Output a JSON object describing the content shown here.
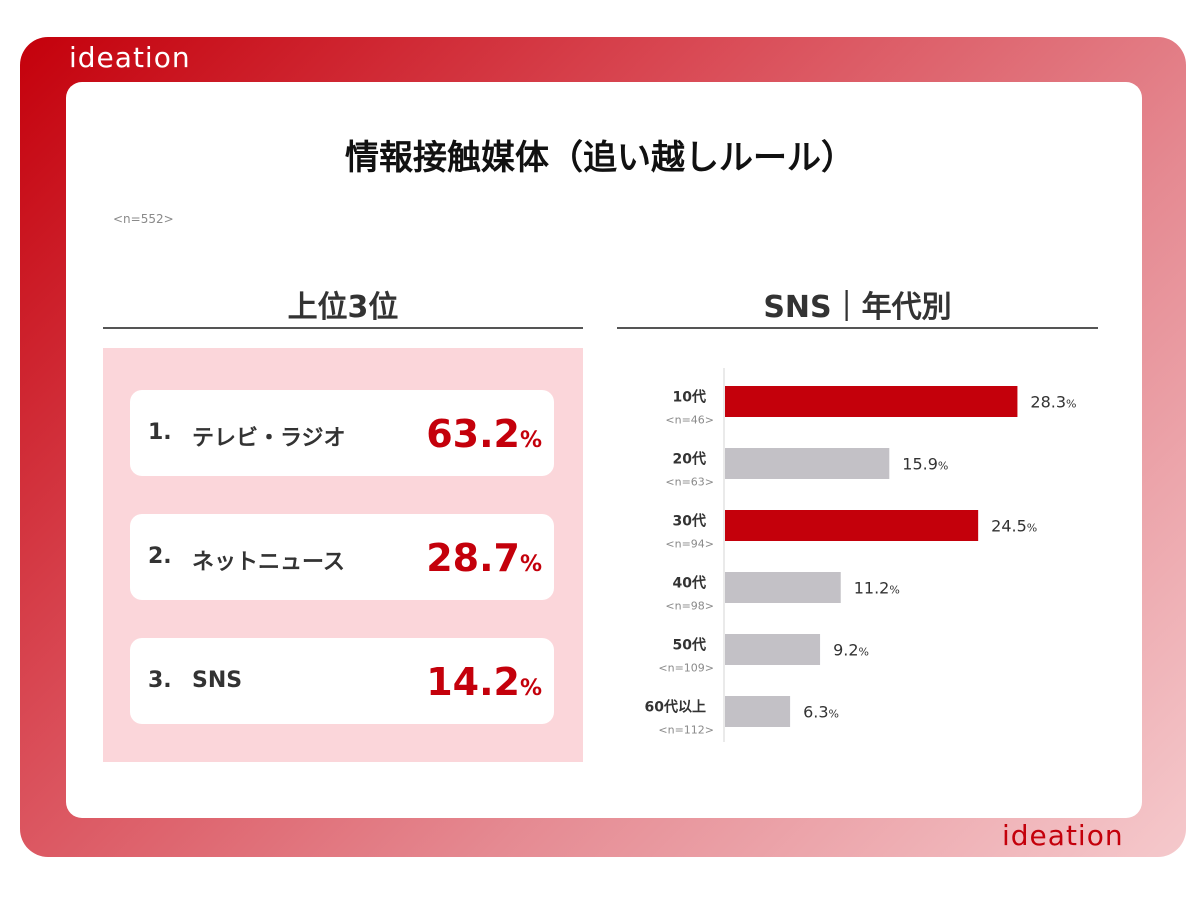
{
  "brand": {
    "logo_text": "ideation"
  },
  "page": {
    "title": "情報接触媒体（追い越しルール）",
    "sample_size": "<n=552>"
  },
  "ranking": {
    "heading": "上位3位",
    "items": [
      {
        "rank": "1.",
        "label": "テレビ・ラジオ",
        "value": "63.2",
        "unit": "%"
      },
      {
        "rank": "2.",
        "label": "ネットニュース",
        "value": "28.7",
        "unit": "%"
      },
      {
        "rank": "3.",
        "label": "SNS",
        "value": "14.2",
        "unit": "%"
      }
    ]
  },
  "sns_by_age": {
    "heading": "SNS｜年代別"
  },
  "colors": {
    "accent_red": "#c4000b",
    "bar_gray": "#c3c1c6",
    "rank_panel_pink": "#fbd6da"
  },
  "chart_data": {
    "type": "bar",
    "orientation": "horizontal",
    "title": "SNS｜年代別",
    "categories": [
      "10代",
      "20代",
      "30代",
      "40代",
      "50代",
      "60代以上"
    ],
    "sample_sizes": [
      "<n=46>",
      "<n=63>",
      "<n=94>",
      "<n=98>",
      "<n=109>",
      "<n=112>"
    ],
    "values": [
      28.3,
      15.9,
      24.5,
      11.2,
      9.2,
      6.3
    ],
    "value_labels": [
      "28.3",
      "15.9",
      "24.5",
      "11.2",
      "9.2",
      "6.3"
    ],
    "unit": "%",
    "highlighted": [
      true,
      false,
      true,
      false,
      false,
      false
    ],
    "xlim": [
      0,
      30
    ],
    "grid": false,
    "legend": "none"
  }
}
